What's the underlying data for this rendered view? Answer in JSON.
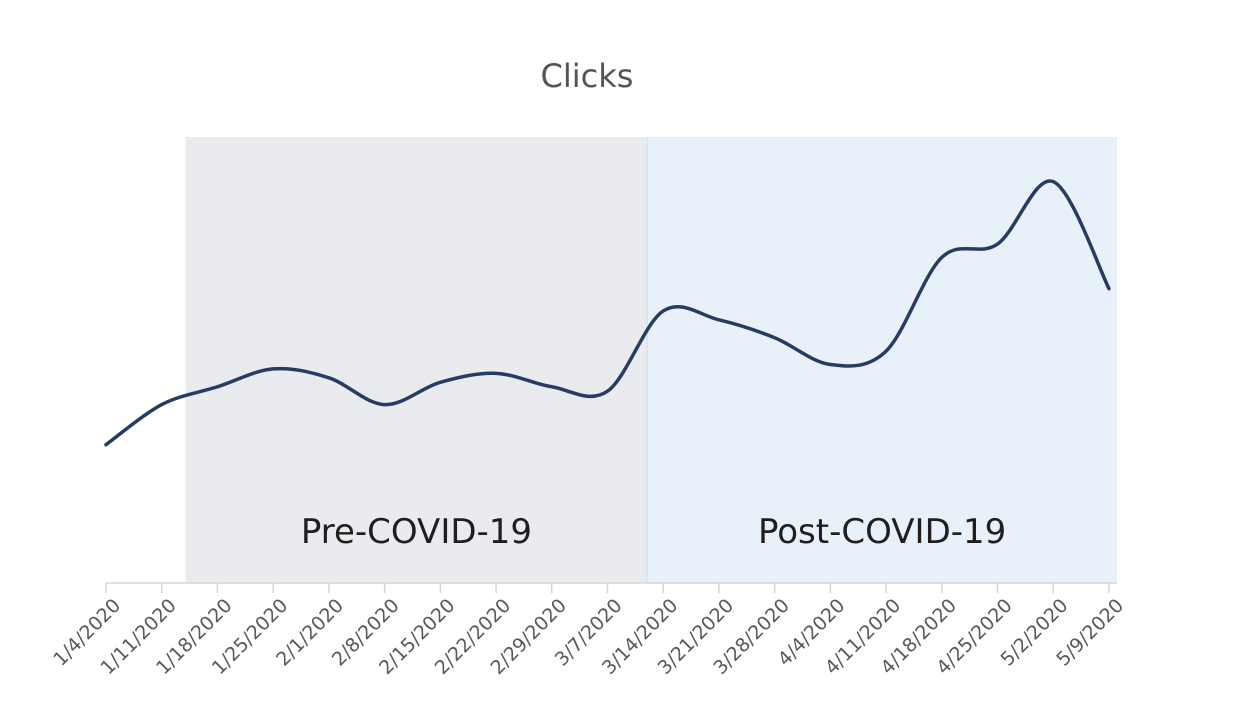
{
  "chart_data": {
    "type": "line",
    "title": "Clicks",
    "xlabel": "",
    "ylabel": "",
    "categories": [
      "1/4/2020",
      "1/11/2020",
      "1/18/2020",
      "1/25/2020",
      "2/1/2020",
      "2/8/2020",
      "2/15/2020",
      "2/22/2020",
      "2/29/2020",
      "3/7/2020",
      "3/14/2020",
      "3/21/2020",
      "3/28/2020",
      "4/4/2020",
      "4/11/2020",
      "4/18/2020",
      "4/25/2020",
      "5/2/2020",
      "5/9/2020"
    ],
    "series": [
      {
        "values": [
          31,
          40,
          44,
          48,
          46,
          40,
          45,
          47,
          44,
          43,
          61,
          59,
          55,
          49,
          52,
          73,
          76,
          90,
          66
        ]
      }
    ],
    "ylim": [
      0,
      100
    ],
    "y_axis_visible": false,
    "grid": false,
    "legend": "none",
    "regions": [
      {
        "label": "Pre-COVID-19",
        "start": "1/14/2020",
        "end": "3/12/2020",
        "color": "#e9ebef"
      },
      {
        "label": "Post-COVID-19",
        "start": "3/12/2020",
        "end": "5/10/2020",
        "color": "#e8f1fa"
      }
    ],
    "line_color": "#263c63"
  }
}
